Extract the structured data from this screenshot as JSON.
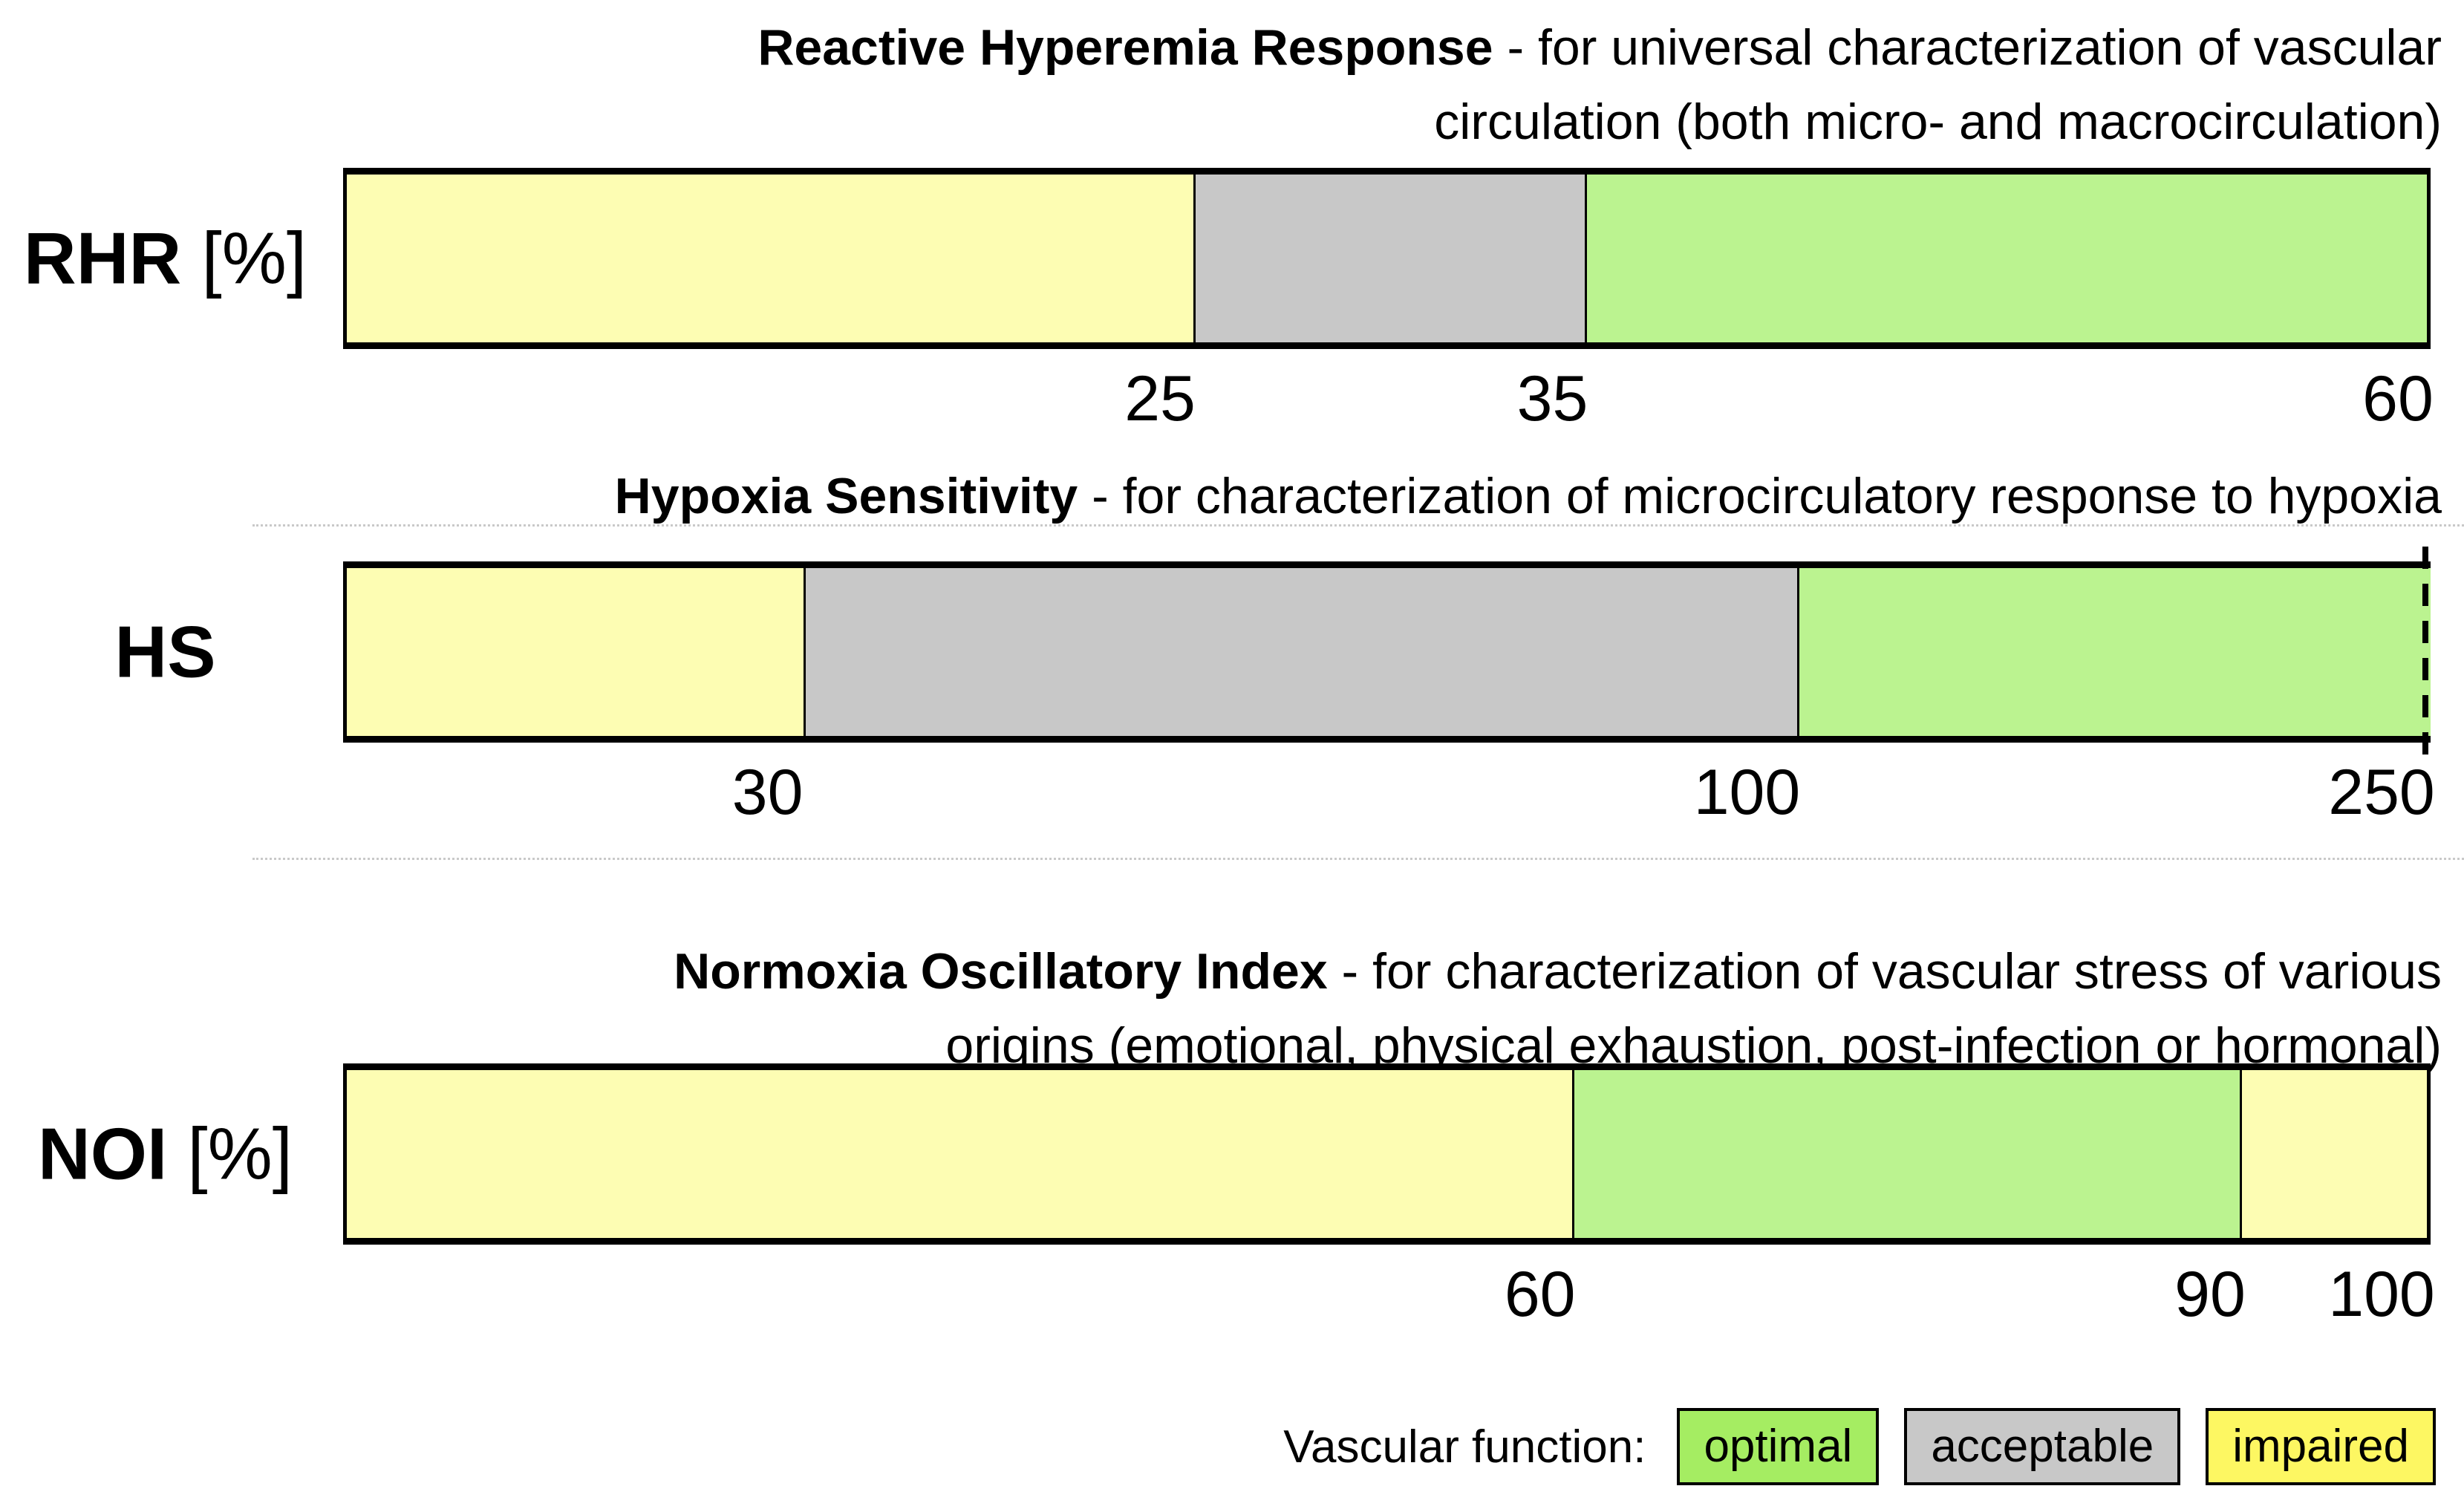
{
  "page": {
    "background": "#ffffff"
  },
  "colors": {
    "impaired_bar": "#FDFDB3",
    "acceptable_bar": "#C8C8C8",
    "optimal_bar": "#BBF390",
    "legend_optimal": "#A5ED62",
    "legend_acceptable": "#C8C8C8",
    "legend_impaired": "#FDF762"
  },
  "legend": {
    "label": "Vascular function:",
    "items": [
      {
        "label": "optimal",
        "color": "#A5ED62"
      },
      {
        "label": "acceptable",
        "color": "#C8C8C8"
      },
      {
        "label": "impaired",
        "color": "#FDF762"
      }
    ]
  },
  "chart_data": [
    {
      "type": "bar",
      "id": "rhr",
      "title_bold": "Reactive Hyperemia Response",
      "title_rest": " - for universal characterization of vascular",
      "title_line2": "circulation (both micro- and macrocirculation)",
      "axis_label": "RHR",
      "axis_unit": " [%]",
      "xlim": [
        0,
        60
      ],
      "scale": "linear",
      "dashed_end": false,
      "segments": [
        {
          "category": "impaired",
          "from": 0,
          "to": 25,
          "color": "#FDFDB3",
          "width_pct": 40.7
        },
        {
          "category": "acceptable",
          "from": 25,
          "to": 35,
          "color": "#C8C8C8",
          "width_pct": 18.8
        },
        {
          "category": "optimal",
          "from": 35,
          "to": 60,
          "color": "#BBF390",
          "width_pct": 40.5
        }
      ],
      "ticks": [
        {
          "label": "25",
          "value": 25,
          "pos_pct": 40.7
        },
        {
          "label": "35",
          "value": 35,
          "pos_pct": 59.5
        },
        {
          "label": "60",
          "value": 60,
          "pos_pct": 100
        }
      ]
    },
    {
      "type": "bar",
      "id": "hs",
      "title_bold": "Hypoxia Sensitivity",
      "title_rest": " - for characterization of microcirculatory response to hypoxia",
      "title_line2": "",
      "axis_label": "HS",
      "axis_unit": "",
      "xlim": [
        0,
        250
      ],
      "scale": "nonlinear",
      "dashed_end": true,
      "segments": [
        {
          "category": "impaired",
          "from": 0,
          "to": 30,
          "color": "#FDFDB3",
          "width_pct": 21.9
        },
        {
          "category": "acceptable",
          "from": 30,
          "to": 100,
          "color": "#C8C8C8",
          "width_pct": 47.7
        },
        {
          "category": "optimal",
          "from": 100,
          "to": 250,
          "color": "#BBF390",
          "width_pct": 30.4
        }
      ],
      "ticks": [
        {
          "label": "30",
          "value": 30,
          "pos_pct": 21.9
        },
        {
          "label": "100",
          "value": 100,
          "pos_pct": 69.6
        },
        {
          "label": "250",
          "value": 250,
          "pos_pct": 100
        }
      ]
    },
    {
      "type": "bar",
      "id": "noi",
      "title_bold": "Normoxia Oscillatory Index",
      "title_rest": " - for characterization of vascular stress of various",
      "title_line2": "origins (emotional, physical exhaustion, post-infection or hormonal)",
      "axis_label": "NOI",
      "axis_unit": " [%]",
      "xlim": [
        0,
        100
      ],
      "scale": "linear",
      "dashed_end": false,
      "segments": [
        {
          "category": "impaired",
          "from": 0,
          "to": 60,
          "color": "#FDFDB3",
          "width_pct": 58.9
        },
        {
          "category": "optimal",
          "from": 60,
          "to": 90,
          "color": "#BBF390",
          "width_pct": 32.1
        },
        {
          "category": "impaired",
          "from": 90,
          "to": 100,
          "color": "#FDFDB3",
          "width_pct": 9.0
        }
      ],
      "ticks": [
        {
          "label": "60",
          "value": 60,
          "pos_pct": 58.9
        },
        {
          "label": "90",
          "value": 90,
          "pos_pct": 91.0
        },
        {
          "label": "100",
          "value": 100,
          "pos_pct": 100
        }
      ]
    }
  ]
}
